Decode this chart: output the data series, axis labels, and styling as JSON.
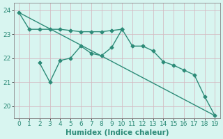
{
  "xlabel": "Humidex (Indice chaleur)",
  "x": [
    0,
    1,
    2,
    3,
    4,
    5,
    6,
    7,
    8,
    9,
    10,
    11,
    12,
    13,
    14,
    15,
    16,
    17,
    18,
    19
  ],
  "line1_x": [
    0,
    1,
    2,
    3,
    4,
    5,
    6,
    7,
    8,
    9,
    10
  ],
  "line1_y": [
    23.9,
    23.2,
    23.2,
    23.2,
    23.2,
    23.15,
    23.1,
    23.1,
    23.1,
    23.15,
    23.2
  ],
  "line2_x": [
    2,
    3,
    4,
    5,
    6,
    7,
    8,
    9,
    10,
    11,
    12,
    13,
    14,
    15,
    16,
    17,
    18,
    19
  ],
  "line2_y": [
    21.8,
    21.0,
    21.9,
    22.0,
    22.5,
    22.2,
    22.1,
    22.45,
    23.2,
    22.5,
    22.5,
    22.3,
    21.85,
    21.7,
    21.5,
    21.3,
    20.4,
    19.6
  ],
  "line3_x": [
    0,
    19
  ],
  "line3_y": [
    23.9,
    19.6
  ],
  "color": "#2d8b78",
  "bg_color": "#d8f5f0",
  "grid_major_color": "#b8ddd8",
  "grid_minor_color": "#cdeee9",
  "ylim_min": 19.5,
  "ylim_max": 24.3,
  "yticks": [
    20,
    21,
    22,
    23,
    24
  ],
  "xticks": [
    0,
    1,
    2,
    3,
    4,
    5,
    6,
    7,
    8,
    9,
    10,
    11,
    12,
    13,
    14,
    15,
    16,
    17,
    18,
    19
  ],
  "tick_fontsize": 6.5,
  "xlabel_fontsize": 7.5
}
